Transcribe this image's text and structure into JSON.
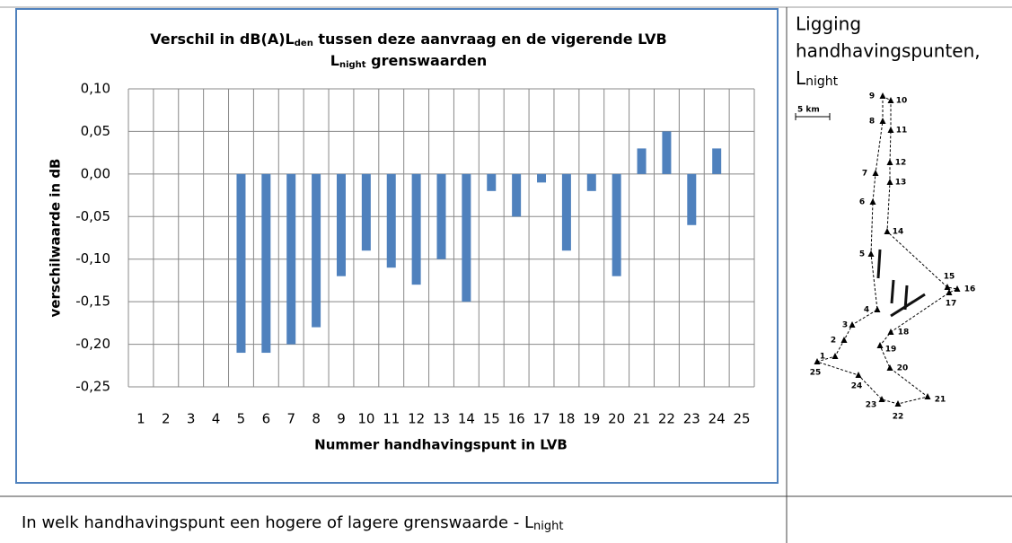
{
  "chart_data": {
    "type": "bar",
    "title_line1": [
      "Verschil in dB(A)L",
      "den",
      " tussen deze aanvraag en de vigerende LVB"
    ],
    "title_line2": [
      "L",
      "night",
      " grenswaarden"
    ],
    "x_label": "Nummer handhavingspunt in LVB",
    "y_label": "verschilwaarde in dB",
    "categories": [
      "1",
      "2",
      "3",
      "4",
      "5",
      "6",
      "7",
      "8",
      "9",
      "10",
      "11",
      "12",
      "13",
      "14",
      "15",
      "16",
      "17",
      "18",
      "19",
      "20",
      "21",
      "22",
      "23",
      "24",
      "25"
    ],
    "values": [
      0,
      0,
      0,
      0,
      -0.21,
      -0.21,
      -0.2,
      -0.18,
      -0.12,
      -0.09,
      -0.11,
      -0.13,
      -0.1,
      -0.15,
      -0.02,
      -0.05,
      -0.01,
      -0.09,
      -0.02,
      -0.12,
      0.03,
      0.05,
      -0.06,
      0.03,
      0
    ],
    "color": "#4f81bd",
    "ylim": [
      -0.25,
      0.1
    ],
    "yticks": [
      {
        "value": 0.1,
        "label": "0,10"
      },
      {
        "value": 0.05,
        "label": "0,05"
      },
      {
        "value": 0,
        "label": "0,00"
      },
      {
        "value": -0.05,
        "label": "-0,05"
      },
      {
        "value": -0.1,
        "label": "-0,10"
      },
      {
        "value": -0.15,
        "label": "-0,15"
      },
      {
        "value": -0.2,
        "label": "-0,20"
      },
      {
        "value": -0.25,
        "label": "-0,25"
      }
    ],
    "grid": true
  },
  "side": {
    "title": [
      "Ligging",
      "handhavingspunten,"
    ],
    "title_sub": [
      "L",
      "night"
    ],
    "map": {
      "scale": "5 km",
      "points": [
        "1",
        "2",
        "3",
        "4",
        "5",
        "6",
        "7",
        "8",
        "9",
        "10",
        "11",
        "12",
        "13",
        "14",
        "15",
        "16",
        "17",
        "18",
        "19",
        "20",
        "21",
        "22",
        "23",
        "24",
        "25"
      ]
    }
  },
  "footer": [
    "In welk handhavingspunt een hogere of lagere grenswaarde - L",
    "night"
  ]
}
